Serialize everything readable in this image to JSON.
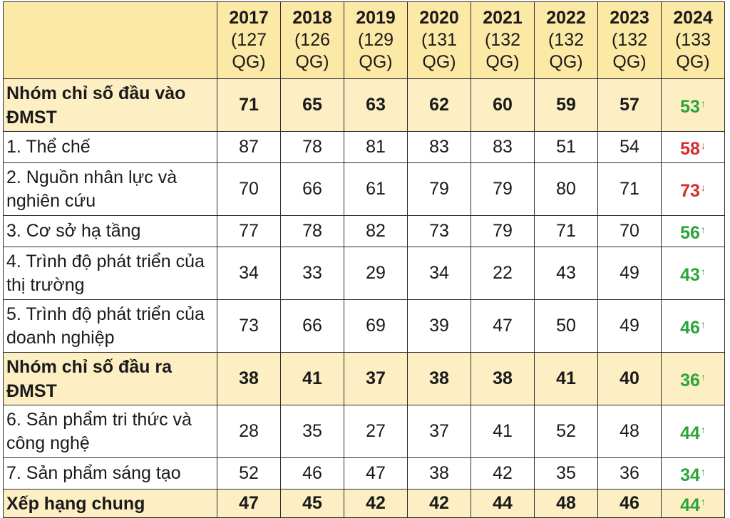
{
  "columns": [
    {
      "year": "2017",
      "count": "(127 QG)"
    },
    {
      "year": "2018",
      "count": "(126 QG)"
    },
    {
      "year": "2019",
      "count": "(129 QG)"
    },
    {
      "year": "2020",
      "count": "(131 QG)"
    },
    {
      "year": "2021",
      "count": "(132 QG)"
    },
    {
      "year": "2022",
      "count": "(132 QG)"
    },
    {
      "year": "2023",
      "count": "(132 QG)"
    },
    {
      "year": "2024",
      "count": "(133 QG)"
    }
  ],
  "rows": [
    {
      "label": "Nhóm chỉ số đầu vào ĐMST",
      "values": [
        "71",
        "65",
        "63",
        "62",
        "60",
        "59",
        "57",
        "53"
      ],
      "trend": "↑"
    },
    {
      "label": "1. Thể chế",
      "values": [
        "87",
        "78",
        "81",
        "83",
        "83",
        "51",
        "54",
        "58"
      ],
      "trend": "↓"
    },
    {
      "label": "2. Nguồn nhân lực và nghiên cứu",
      "values": [
        "70",
        "66",
        "61",
        "79",
        "79",
        "80",
        "71",
        "73"
      ],
      "trend": "↓"
    },
    {
      "label": "3. Cơ sở hạ tầng",
      "values": [
        "77",
        "78",
        "82",
        "73",
        "79",
        "71",
        "70",
        "56"
      ],
      "trend": "↑"
    },
    {
      "label": "4. Trình độ phát triển của thị trường",
      "values": [
        "34",
        "33",
        "29",
        "34",
        "22",
        "43",
        "49",
        "43"
      ],
      "trend": "↑"
    },
    {
      "label": "5. Trình độ phát triển của doanh nghiệp",
      "values": [
        "73",
        "66",
        "69",
        "39",
        "47",
        "50",
        "49",
        "46"
      ],
      "trend": "↑"
    },
    {
      "label": "Nhóm chỉ số đầu ra ĐMST",
      "values": [
        "38",
        "41",
        "37",
        "38",
        "38",
        "41",
        "40",
        "36"
      ],
      "trend": "↑"
    },
    {
      "label": "6. Sản phẩm tri thức và công nghệ",
      "values": [
        "28",
        "35",
        "27",
        "37",
        "41",
        "52",
        "48",
        "44"
      ],
      "trend": "↑"
    },
    {
      "label": "7. Sản phẩm sáng tạo",
      "values": [
        "52",
        "46",
        "47",
        "38",
        "42",
        "35",
        "36",
        "34"
      ],
      "trend": "↑"
    },
    {
      "label": "Xếp hạng chung",
      "values": [
        "47",
        "45",
        "42",
        "42",
        "44",
        "48",
        "46",
        "44"
      ],
      "trend": "↑"
    }
  ],
  "colors": {
    "header_bg": "#fde9a6",
    "group_bg": "#fdefc3",
    "up": "#2aa53a",
    "down": "#d62d2d"
  }
}
